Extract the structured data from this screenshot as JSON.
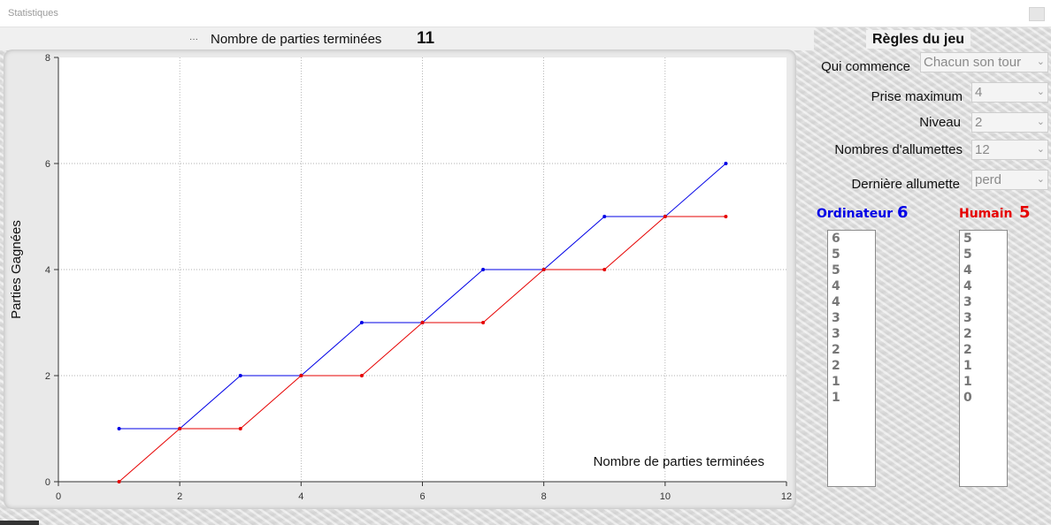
{
  "window": {
    "title": "Statistiques"
  },
  "header": {
    "legend_glyph": "···",
    "count_label": "Nombre de parties terminées",
    "count_value": "11"
  },
  "rules": {
    "title": "Règles du jeu",
    "fields": [
      {
        "label": "Qui commence",
        "value": "Chacun son tour"
      },
      {
        "label": "Prise maximum",
        "value": "4"
      },
      {
        "label": "Niveau",
        "value": "2"
      },
      {
        "label": "Nombres d'allumettes",
        "value": "12"
      },
      {
        "label": "Dernière allumette",
        "value": "perd"
      }
    ]
  },
  "ordinateur": {
    "label": "Ordinateur",
    "score": "6",
    "color": "#0000e6",
    "history": [
      "6",
      "5",
      "5",
      "4",
      "4",
      "3",
      "3",
      "2",
      "2",
      "1",
      "1"
    ]
  },
  "humain": {
    "label": "Humain",
    "score": "5",
    "color": "#e60000",
    "history": [
      "5",
      "5",
      "4",
      "4",
      "3",
      "3",
      "2",
      "2",
      "1",
      "1",
      "0"
    ]
  },
  "chart_data": {
    "type": "line",
    "xlabel": "Nombre de parties terminées",
    "ylabel": "Parties Gagnées",
    "xlim": [
      0,
      12
    ],
    "ylim": [
      0,
      8
    ],
    "x_ticks": [
      "0",
      "2",
      "4",
      "6",
      "8",
      "10",
      "12"
    ],
    "y_ticks": [
      "0",
      "2",
      "4",
      "6",
      "8"
    ],
    "grid": true,
    "x": [
      1,
      2,
      3,
      4,
      5,
      6,
      7,
      8,
      9,
      10,
      11
    ],
    "series": [
      {
        "key": "ordinateur",
        "color": "#0000e6",
        "values": [
          1,
          1,
          2,
          2,
          3,
          3,
          4,
          4,
          5,
          5,
          6
        ]
      },
      {
        "key": "humain",
        "color": "#e60000",
        "values": [
          0,
          1,
          1,
          2,
          2,
          3,
          3,
          4,
          4,
          5,
          5
        ]
      }
    ]
  }
}
